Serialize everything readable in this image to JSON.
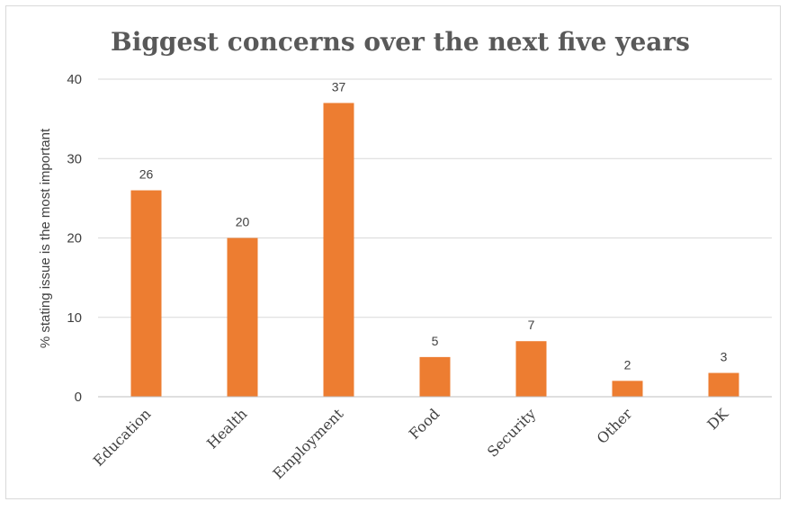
{
  "chart_data": {
    "type": "bar",
    "title": "Biggest concerns over the next five years",
    "ylabel": "% stating issue is the most important",
    "xlabel": "",
    "categories": [
      "Education",
      "Health",
      "Employment",
      "Food",
      "Security",
      "Other",
      "DK"
    ],
    "values": [
      26,
      20,
      37,
      5,
      7,
      2,
      3
    ],
    "ylim": [
      0,
      40
    ],
    "yticks": [
      0,
      10,
      20,
      30,
      40
    ],
    "grid": true,
    "legend": "none",
    "bar_color": "#ED7D31"
  }
}
